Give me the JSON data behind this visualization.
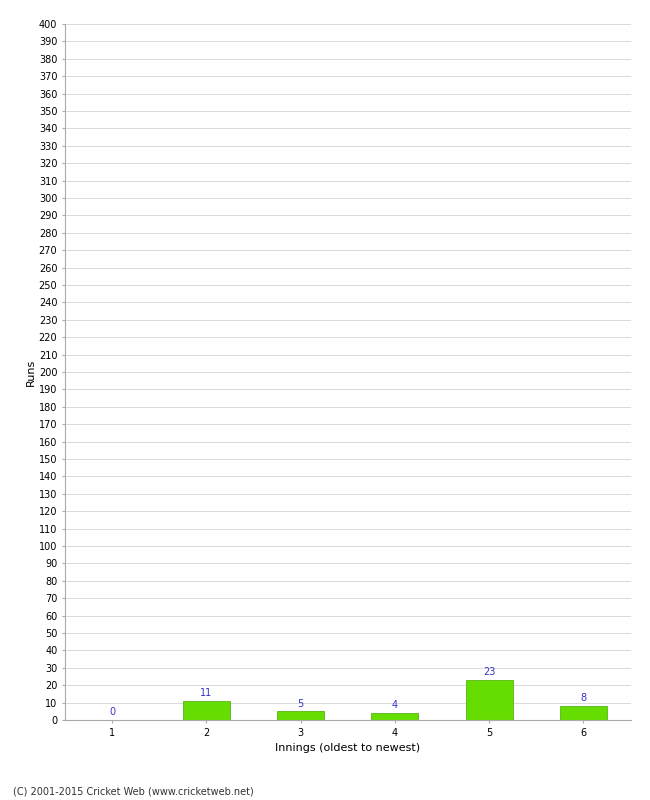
{
  "title": "",
  "xlabel": "Innings (oldest to newest)",
  "ylabel": "Runs",
  "categories": [
    "1",
    "2",
    "3",
    "4",
    "5",
    "6"
  ],
  "values": [
    0,
    11,
    5,
    4,
    23,
    8
  ],
  "bar_color": "#66dd00",
  "bar_edge_color": "#44aa00",
  "label_color": "#3333cc",
  "ylim": [
    0,
    400
  ],
  "background_color": "#ffffff",
  "footer_text": "(C) 2001-2015 Cricket Web (www.cricketweb.net)",
  "grid_color": "#cccccc",
  "axis_label_fontsize": 8,
  "tick_fontsize": 7,
  "bar_label_fontsize": 7,
  "footer_fontsize": 7
}
